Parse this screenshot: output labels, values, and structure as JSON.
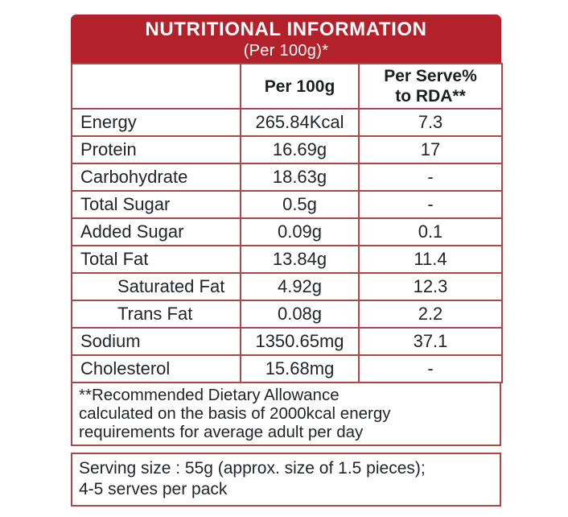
{
  "header": {
    "title": "NUTRITIONAL INFORMATION",
    "subtitle": "(Per 100g)*"
  },
  "table": {
    "columns": {
      "label": "",
      "per_100g": "Per 100g",
      "per_serve_line1": "Per Serve%",
      "per_serve_line2": "to RDA**"
    },
    "rows": [
      {
        "label": "Energy",
        "per_100g": "265.84Kcal",
        "per_serve": "7.3"
      },
      {
        "label": "Protein",
        "per_100g": "16.69g",
        "per_serve": "17"
      },
      {
        "label": "Carbohydrate",
        "per_100g": "18.63g",
        "per_serve": "-"
      },
      {
        "label": "Total Sugar",
        "per_100g": "0.5g",
        "per_serve": "-"
      },
      {
        "label": "Added Sugar",
        "per_100g": "0.09g",
        "per_serve": "0.1"
      },
      {
        "label": "Total Fat",
        "per_100g": "13.84g",
        "per_serve": "11.4"
      },
      {
        "label": "Saturated Fat",
        "per_100g": "4.92g",
        "per_serve": "12.3"
      },
      {
        "label": "Trans Fat",
        "per_100g": "0.08g",
        "per_serve": "2.2"
      },
      {
        "label": "Sodium",
        "per_100g": "1350.65mg",
        "per_serve": "37.1"
      },
      {
        "label": "Cholesterol",
        "per_100g": "15.68mg",
        "per_serve": "-"
      }
    ]
  },
  "footnote": {
    "line1": "**Recommended Dietary Allowance",
    "line2": "calculated on the basis of 2000kcal energy",
    "line3": "requirements for average adult per day"
  },
  "serving": {
    "line1": "Serving size : 55g (approx. size of 1.5 pieces);",
    "line2": "4-5 serves per pack"
  },
  "colors": {
    "band_red": "#b3222a",
    "border_red": "#a84a4c",
    "text": "#232427",
    "band_text": "#ffffff"
  }
}
